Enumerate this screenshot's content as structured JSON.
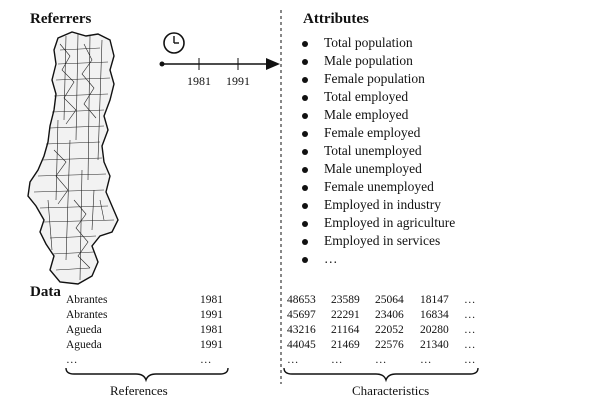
{
  "referrers_title": "Referrers",
  "attributes_title": "Attributes",
  "data_title": "Data",
  "timeline": {
    "years": [
      "1981",
      "1991"
    ],
    "icon": "clock-icon"
  },
  "attributes": [
    "Total population",
    "Male population",
    "Female population",
    "Total employed",
    "Male employed",
    "Female employed",
    "Total unemployed",
    "Male unemployed",
    "Female unemployed",
    "Employed in industry",
    "Employed in agriculture",
    "Employed in services",
    "…"
  ],
  "references": {
    "rows": [
      {
        "place": "Abrantes",
        "year": "1981"
      },
      {
        "place": "Abrantes",
        "year": "1991"
      },
      {
        "place": "Agueda",
        "year": "1981"
      },
      {
        "place": "Agueda",
        "year": "1991"
      },
      {
        "place": "…",
        "year": "…"
      }
    ],
    "label": "References"
  },
  "characteristics": {
    "rows": [
      [
        "48653",
        "23589",
        "25064",
        "18147",
        "…"
      ],
      [
        "45697",
        "22291",
        "23406",
        "16834",
        "…"
      ],
      [
        "43216",
        "21164",
        "22052",
        "20280",
        "…"
      ],
      [
        "44045",
        "21469",
        "22576",
        "21340",
        "…"
      ],
      [
        "…",
        "…",
        "…",
        "…",
        "…"
      ]
    ],
    "label": "Characteristics"
  },
  "map_icon": "portugal-municipalities-map-icon"
}
